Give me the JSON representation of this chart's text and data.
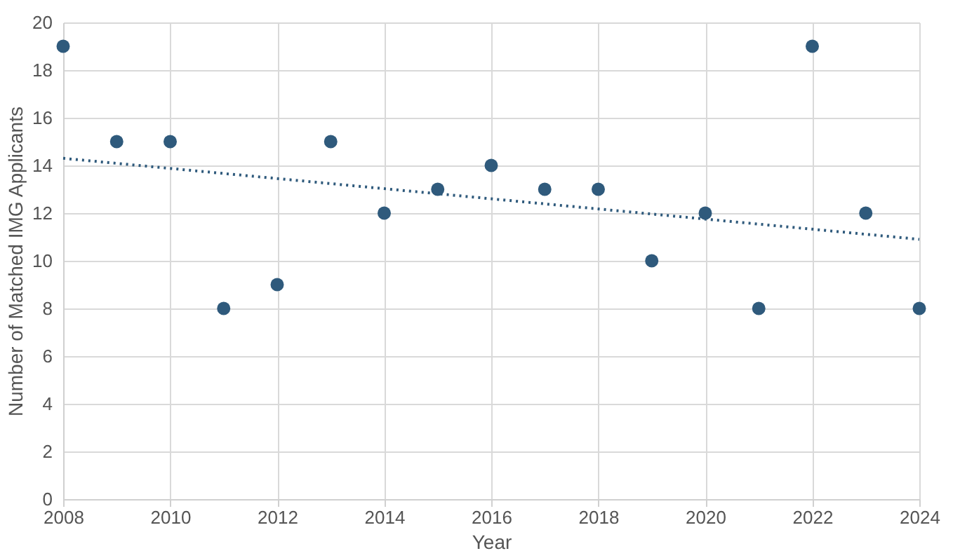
{
  "chart_data": {
    "type": "scatter",
    "xlabel": "Year",
    "ylabel": "Number of Matched IMG Applicants",
    "xlim": [
      2008,
      2024
    ],
    "xticks": [
      2008,
      2010,
      2012,
      2014,
      2016,
      2018,
      2020,
      2022,
      2024
    ],
    "ylim": [
      0,
      20
    ],
    "yticks": [
      0,
      2,
      4,
      6,
      8,
      10,
      12,
      14,
      16,
      18,
      20
    ],
    "grid": true,
    "marker": "circle",
    "series": [
      {
        "color": "#2f5a7c",
        "x": [
          2008,
          2009,
          2010,
          2011,
          2012,
          2013,
          2014,
          2015,
          2016,
          2017,
          2018,
          2019,
          2020,
          2021,
          2022,
          2023,
          2024
        ],
        "values": [
          19,
          15,
          15,
          8,
          9,
          15,
          12,
          13,
          14,
          13,
          13,
          10,
          12,
          8,
          19,
          12,
          8
        ]
      },
      {
        "type": "line",
        "color": "#2f5a7c",
        "line_style": "dotted",
        "marker": "none",
        "x": [
          2008,
          2024
        ],
        "values": [
          14.3,
          10.9
        ]
      }
    ]
  }
}
